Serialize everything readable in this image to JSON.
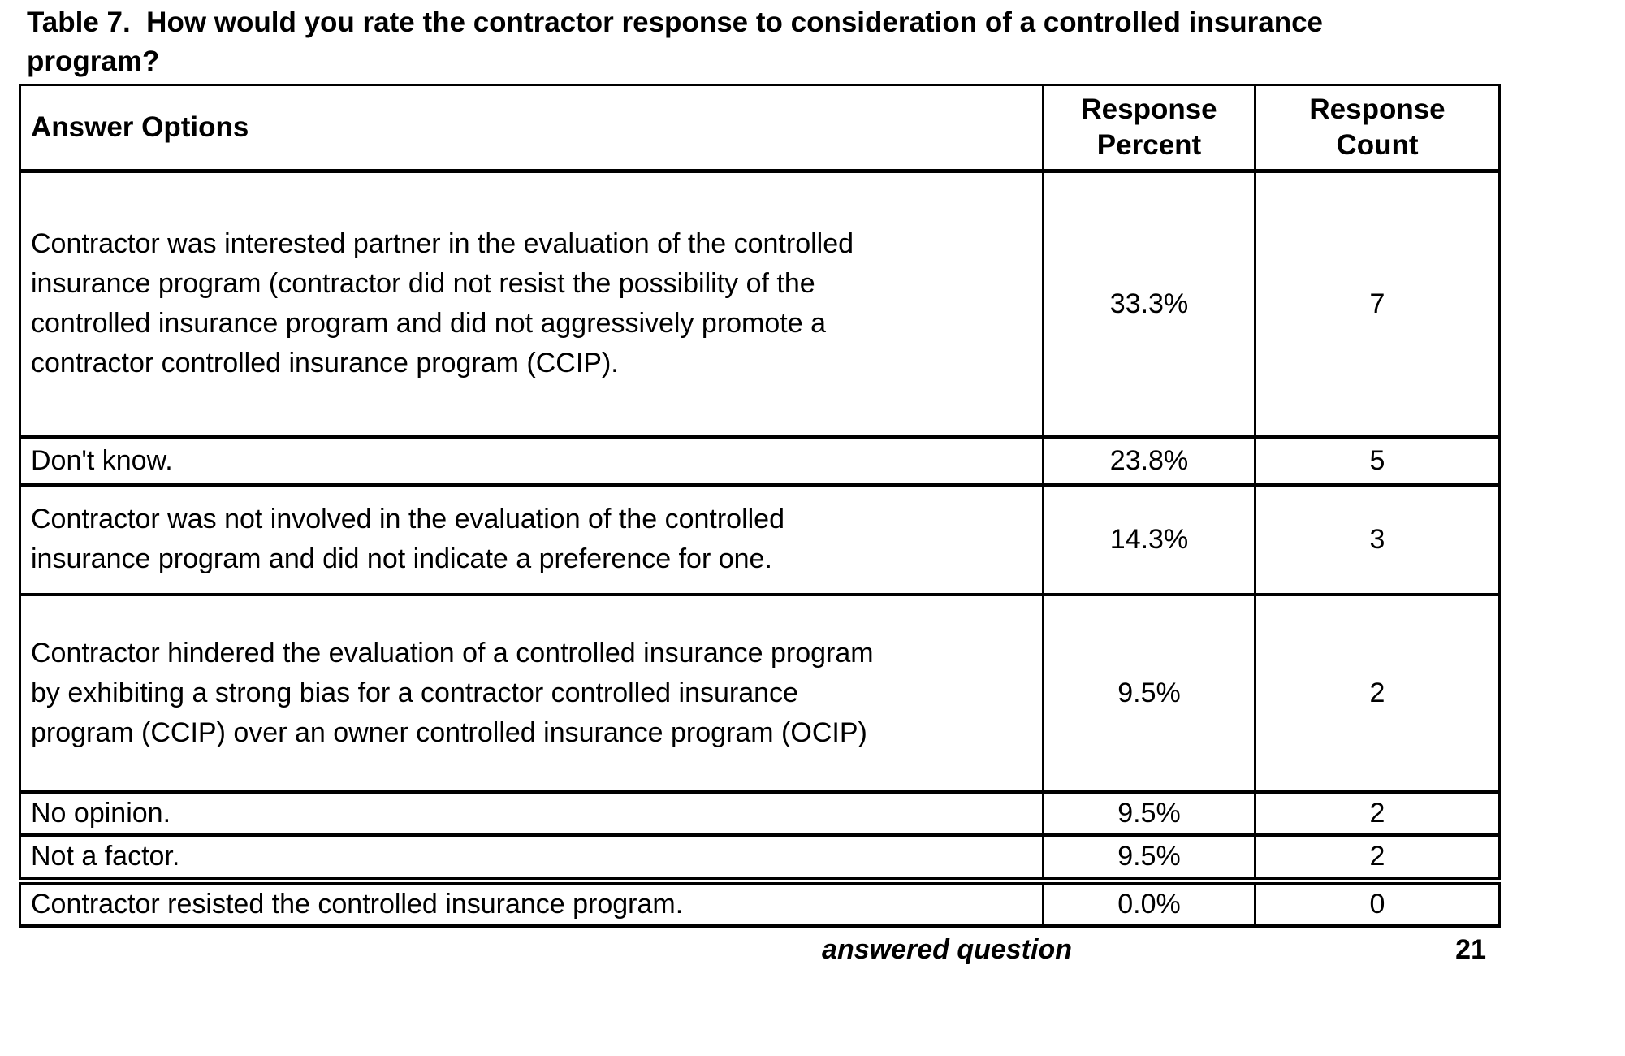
{
  "page": {
    "background": "#ffffff",
    "text_color": "#000000",
    "border_color": "#000000"
  },
  "title": {
    "text": "Table 7.  How would you rate the contractor response to consideration of a controlled insurance\nprogram?"
  },
  "table": {
    "columns": [
      {
        "label": "Answer Options"
      },
      {
        "label": "Response\nPercent"
      },
      {
        "label": "Response\nCount"
      }
    ],
    "rows": [
      {
        "option": "Contractor was interested partner in the evaluation of the controlled\ninsurance program (contractor did not resist the possibility of the\ncontrolled insurance program and did not aggressively promote a\ncontractor controlled insurance program (CCIP).",
        "percent": "33.3%",
        "count": "7"
      },
      {
        "option": "Don't know.",
        "percent": "23.8%",
        "count": "5"
      },
      {
        "option": "Contractor was not involved in the evaluation of the controlled\ninsurance program and did not indicate a preference for one.",
        "percent": "14.3%",
        "count": "3"
      },
      {
        "option": "Contractor hindered the evaluation of a controlled insurance program\nby exhibiting a strong bias for a contractor controlled insurance\nprogram (CCIP) over an owner controlled insurance program (OCIP)",
        "percent": "9.5%",
        "count": "2"
      },
      {
        "option": "No opinion.",
        "percent": "9.5%",
        "count": "2"
      },
      {
        "option": "Not a factor.",
        "percent": "9.5%",
        "count": "2"
      },
      {
        "option": "Contractor resisted the controlled insurance program.",
        "percent": "0.0%",
        "count": "0"
      }
    ],
    "footer": {
      "label": "answered question",
      "value": "21"
    }
  }
}
